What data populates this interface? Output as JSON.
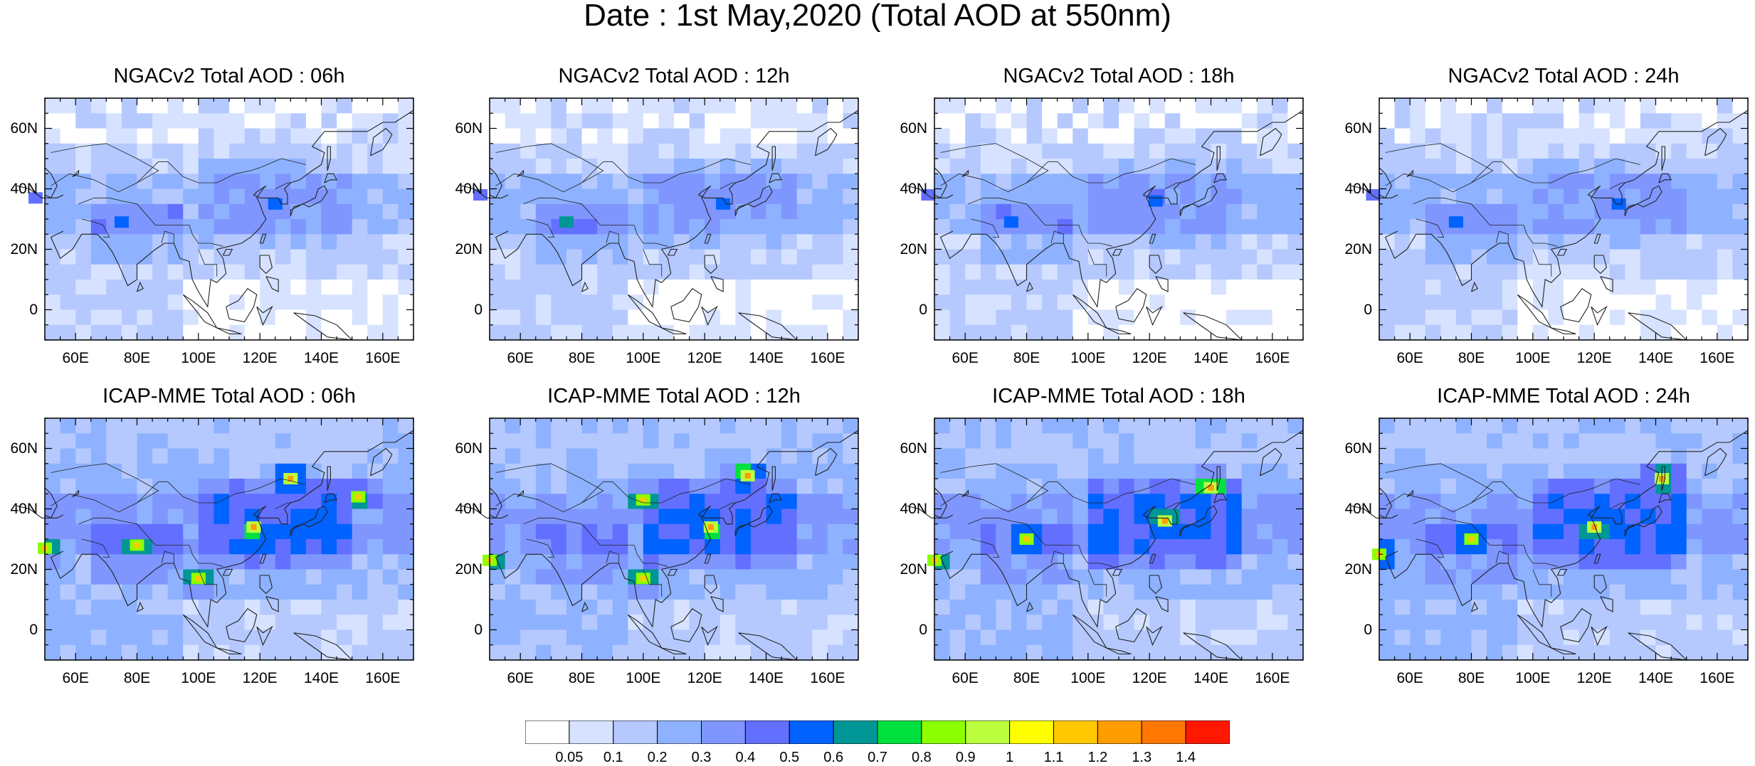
{
  "title": "Date : 1st May,2020 (Total AOD at 550nm)",
  "panels": [
    {
      "title": "NGACv2 Total AOD : 06h",
      "model": "NGACv2",
      "lead": "06h",
      "hotspots": [
        [
          75,
          29,
          0.5
        ],
        [
          125,
          35,
          0.5
        ],
        [
          47,
          37,
          0.4
        ]
      ]
    },
    {
      "title": "NGACv2 Total AOD : 12h",
      "model": "NGACv2",
      "lead": "12h",
      "hotspots": [
        [
          75,
          29,
          0.6
        ],
        [
          126,
          35,
          0.5
        ],
        [
          47,
          38,
          0.4
        ]
      ]
    },
    {
      "title": "NGACv2 Total AOD : 18h",
      "model": "NGACv2",
      "lead": "18h",
      "hotspots": [
        [
          75,
          29,
          0.5
        ],
        [
          122,
          36,
          0.5
        ],
        [
          48,
          38,
          0.4
        ]
      ]
    },
    {
      "title": "NGACv2 Total AOD : 24h",
      "model": "NGACv2",
      "lead": "24h",
      "hotspots": [
        [
          75,
          29,
          0.5
        ],
        [
          128,
          35,
          0.5
        ],
        [
          48,
          38,
          0.4
        ]
      ]
    },
    {
      "title": "ICAP-MME Total AOD : 06h",
      "model": "ICAP-MME",
      "lead": "06h",
      "hotspots": [
        [
          118,
          34,
          0.9
        ],
        [
          130,
          50,
          0.9
        ],
        [
          152,
          44,
          0.8
        ],
        [
          80,
          28,
          0.8
        ],
        [
          100,
          17,
          0.8
        ],
        [
          50,
          27,
          0.8
        ]
      ]
    },
    {
      "title": "ICAP-MME Total AOD : 12h",
      "model": "ICAP-MME",
      "lead": "12h",
      "hotspots": [
        [
          122,
          34,
          0.9
        ],
        [
          134,
          51,
          0.9
        ],
        [
          100,
          17,
          0.8
        ],
        [
          100,
          43,
          0.8
        ],
        [
          50,
          23,
          0.8
        ]
      ]
    },
    {
      "title": "ICAP-MME Total AOD : 18h",
      "model": "ICAP-MME",
      "lead": "18h",
      "hotspots": [
        [
          125,
          36,
          0.9
        ],
        [
          140,
          47,
          0.9
        ],
        [
          80,
          30,
          0.8
        ],
        [
          50,
          23,
          0.8
        ]
      ]
    },
    {
      "title": "ICAP-MME Total AOD : 24h",
      "model": "ICAP-MME",
      "lead": "24h",
      "hotspots": [
        [
          120,
          34,
          0.9
        ],
        [
          142,
          50,
          0.9
        ],
        [
          80,
          30,
          0.8
        ],
        [
          50,
          25,
          0.8
        ]
      ]
    }
  ],
  "map": {
    "lon_range": [
      50,
      170
    ],
    "lat_range": [
      -10,
      70
    ],
    "lon_ticks": [
      "60E",
      "80E",
      "100E",
      "120E",
      "140E",
      "160E"
    ],
    "lat_ticks": [
      "60N",
      "40N",
      "20N",
      "0"
    ]
  },
  "colorbar": {
    "levels": [
      "0.05",
      "0.1",
      "0.2",
      "0.3",
      "0.4",
      "0.5",
      "0.6",
      "0.7",
      "0.8",
      "0.9",
      "1",
      "1.1",
      "1.2",
      "1.3",
      "1.4"
    ],
    "colors": [
      "#ffffff",
      "#d6e2ff",
      "#b5c9ff",
      "#8eb2ff",
      "#7f96ff",
      "#6370ff",
      "#0062ff",
      "#009696",
      "#00e13f",
      "#8cff00",
      "#bcff3f",
      "#ffff00",
      "#ffc800",
      "#ff9c00",
      "#ff7600",
      "#ff1800"
    ]
  }
}
